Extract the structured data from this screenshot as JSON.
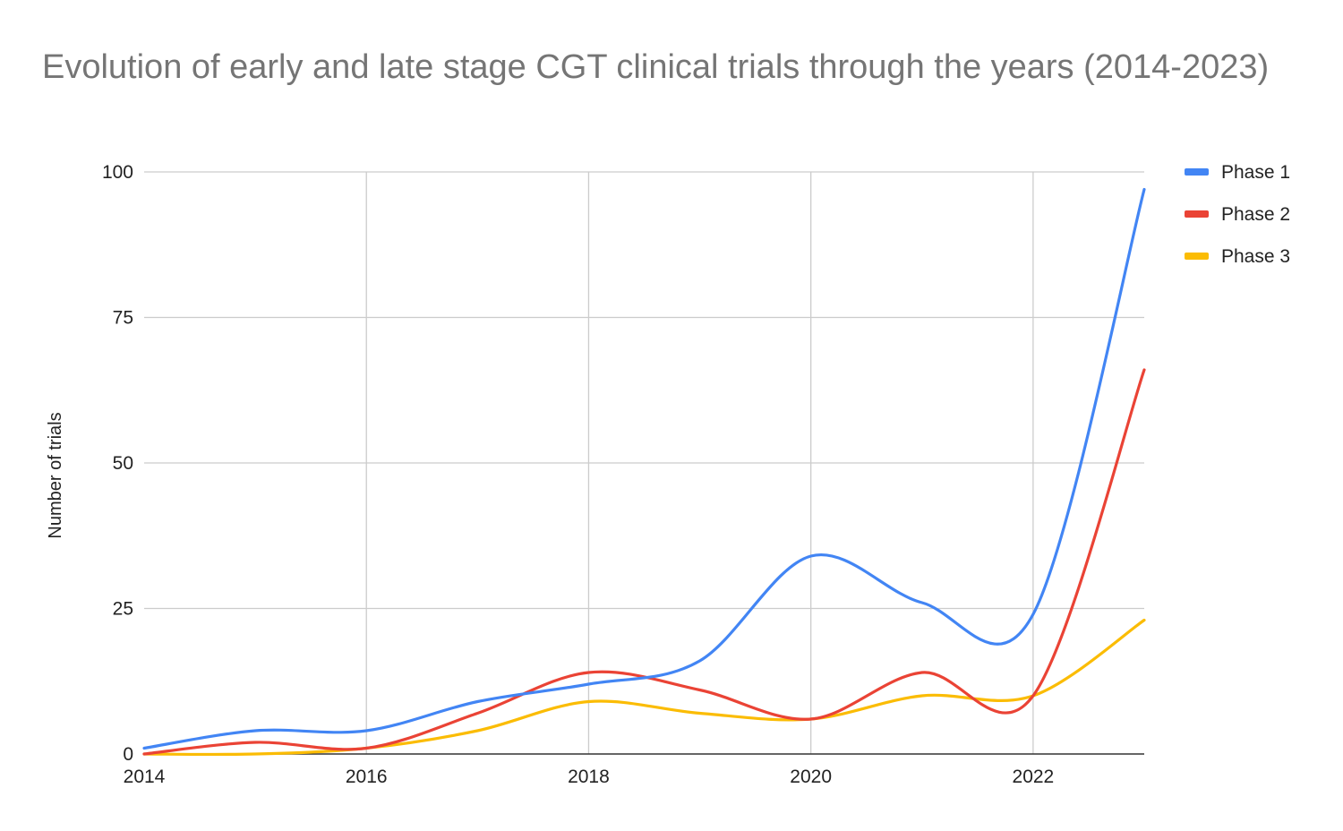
{
  "chart_data": {
    "type": "line",
    "title": "Evolution of early and late stage CGT clinical trials through the years (2014-2023)",
    "xlabel": "",
    "ylabel": "Number of trials",
    "x": [
      2014,
      2015,
      2016,
      2017,
      2018,
      2019,
      2020,
      2021,
      2022,
      2023
    ],
    "xticks": [
      2014,
      2016,
      2018,
      2020,
      2022
    ],
    "yticks": [
      0,
      25,
      50,
      75,
      100
    ],
    "xlim": [
      2014,
      2023
    ],
    "ylim": [
      0,
      100
    ],
    "grid": true,
    "smooth": true,
    "legend_position": "right",
    "series": [
      {
        "name": "Phase 1",
        "color": "#4285F4",
        "values": [
          1,
          4,
          4,
          9,
          12,
          16,
          34,
          26,
          24,
          97
        ]
      },
      {
        "name": "Phase 2",
        "color": "#EA4335",
        "values": [
          0,
          2,
          1,
          7,
          14,
          11,
          6,
          14,
          10,
          66
        ]
      },
      {
        "name": "Phase 3",
        "color": "#FBBC04",
        "values": [
          0,
          0,
          1,
          4,
          9,
          7,
          6,
          10,
          10,
          23
        ]
      }
    ]
  }
}
